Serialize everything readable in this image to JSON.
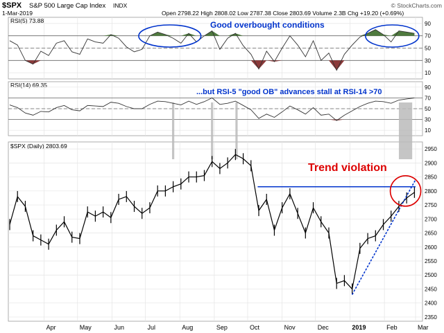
{
  "header": {
    "symbol": "$SPX",
    "name": "S&P 500 Large Cap Index",
    "exchange": "INDX",
    "date": "1-Mar-2019",
    "quote": "Open 2798.22  High 2808.02  Low 2787.38  Close 2803.69  Volume 2.3B  Chg +19.20 (+0.69%)",
    "watermark": "© StockCharts.com"
  },
  "colors": {
    "price": "#000000",
    "rsi_line": "#333333",
    "ob_fill": "#4f7a3e",
    "os_fill": "#8c3a3a",
    "annot_blue": "#0033cc",
    "annot_red": "#dd0000",
    "highlight": "#bbbbbb",
    "grid": "#e4e4e4"
  },
  "chart_data": [
    {
      "type": "line",
      "panel": "rsi5",
      "label": "RSI(5) 73.88",
      "ylim": [
        0,
        100
      ],
      "yticks": [
        10,
        30,
        50,
        70,
        90
      ],
      "ref_levels": [
        30,
        50,
        70
      ],
      "annotation": "Good overbought conditions",
      "series": [
        {
          "x": [
            "2018-03-01",
            "2018-03-08",
            "2018-03-15",
            "2018-03-22",
            "2018-03-29",
            "2018-04-05",
            "2018-04-12",
            "2018-04-19",
            "2018-04-26",
            "2018-05-03",
            "2018-05-10",
            "2018-05-17",
            "2018-05-24",
            "2018-05-31",
            "2018-06-07",
            "2018-06-14",
            "2018-06-21",
            "2018-06-28",
            "2018-07-05",
            "2018-07-12",
            "2018-07-19",
            "2018-07-26",
            "2018-08-02",
            "2018-08-09",
            "2018-08-16",
            "2018-08-23",
            "2018-08-30",
            "2018-09-06",
            "2018-09-13",
            "2018-09-20",
            "2018-09-27",
            "2018-10-04",
            "2018-10-11",
            "2018-10-18",
            "2018-10-25",
            "2018-11-01",
            "2018-11-08",
            "2018-11-15",
            "2018-11-22",
            "2018-11-29",
            "2018-12-06",
            "2018-12-13",
            "2018-12-20",
            "2018-12-27",
            "2019-01-03",
            "2019-01-10",
            "2019-01-17",
            "2019-01-24",
            "2019-01-31",
            "2019-02-07",
            "2019-02-14",
            "2019-02-21",
            "2019-02-28"
          ],
          "values": [
            62,
            55,
            30,
            24,
            45,
            38,
            58,
            62,
            44,
            40,
            65,
            60,
            58,
            72,
            66,
            52,
            44,
            48,
            70,
            76,
            72,
            66,
            58,
            74,
            60,
            70,
            78,
            48,
            66,
            74,
            54,
            40,
            16,
            45,
            28,
            50,
            70,
            55,
            36,
            62,
            30,
            42,
            14,
            40,
            55,
            68,
            74,
            80,
            72,
            60,
            78,
            76,
            74
          ]
        }
      ]
    },
    {
      "type": "line",
      "panel": "rsi14",
      "label": "RSI(14) 69.35",
      "ylim": [
        0,
        100
      ],
      "yticks": [
        10,
        30,
        50,
        70,
        90
      ],
      "ref_levels": [
        30,
        50,
        70
      ],
      "annotation": "...but RSI-5 \"good OB\" advances stall at RSI-14 >70",
      "series": [
        {
          "x": [
            "2018-03-01",
            "2018-03-08",
            "2018-03-15",
            "2018-03-22",
            "2018-03-29",
            "2018-04-05",
            "2018-04-12",
            "2018-04-19",
            "2018-04-26",
            "2018-05-03",
            "2018-05-10",
            "2018-05-17",
            "2018-05-24",
            "2018-05-31",
            "2018-06-07",
            "2018-06-14",
            "2018-06-21",
            "2018-06-28",
            "2018-07-05",
            "2018-07-12",
            "2018-07-19",
            "2018-07-26",
            "2018-08-02",
            "2018-08-09",
            "2018-08-16",
            "2018-08-23",
            "2018-08-30",
            "2018-09-06",
            "2018-09-13",
            "2018-09-20",
            "2018-09-27",
            "2018-10-04",
            "2018-10-11",
            "2018-10-18",
            "2018-10-25",
            "2018-11-01",
            "2018-11-08",
            "2018-11-15",
            "2018-11-22",
            "2018-11-29",
            "2018-12-06",
            "2018-12-13",
            "2018-12-20",
            "2018-12-27",
            "2019-01-03",
            "2019-01-10",
            "2019-01-17",
            "2019-01-24",
            "2019-01-31",
            "2019-02-07",
            "2019-02-14",
            "2019-02-21",
            "2019-02-28"
          ],
          "values": [
            57,
            52,
            42,
            38,
            45,
            44,
            52,
            56,
            48,
            46,
            56,
            55,
            54,
            62,
            60,
            54,
            50,
            50,
            58,
            64,
            63,
            60,
            57,
            64,
            58,
            63,
            70,
            58,
            60,
            64,
            56,
            48,
            32,
            40,
            34,
            44,
            55,
            48,
            40,
            52,
            38,
            40,
            28,
            38,
            46,
            54,
            60,
            64,
            63,
            60,
            66,
            68,
            70
          ]
        }
      ]
    },
    {
      "type": "line",
      "panel": "price",
      "label": "$SPX (Daily) 2803.69",
      "ylim": [
        2335,
        2975
      ],
      "yticks": [
        2350,
        2400,
        2450,
        2500,
        2550,
        2600,
        2650,
        2700,
        2750,
        2800,
        2850,
        2900,
        2950
      ],
      "annotation": "Trend violation",
      "resistance": {
        "x": [
          "2018-10-10",
          "2019-03-01"
        ],
        "y": [
          2815,
          2815
        ]
      },
      "trendline": {
        "x": [
          "2019-01-03",
          "2019-03-01"
        ],
        "y": [
          2430,
          2840
        ]
      },
      "series": [
        {
          "name": "$SPX",
          "x": [
            "2018-03-01",
            "2018-03-08",
            "2018-03-15",
            "2018-03-22",
            "2018-03-29",
            "2018-04-05",
            "2018-04-12",
            "2018-04-19",
            "2018-04-26",
            "2018-05-03",
            "2018-05-10",
            "2018-05-17",
            "2018-05-24",
            "2018-05-31",
            "2018-06-07",
            "2018-06-14",
            "2018-06-21",
            "2018-06-28",
            "2018-07-05",
            "2018-07-12",
            "2018-07-19",
            "2018-07-26",
            "2018-08-02",
            "2018-08-09",
            "2018-08-16",
            "2018-08-23",
            "2018-08-30",
            "2018-09-06",
            "2018-09-13",
            "2018-09-20",
            "2018-09-27",
            "2018-10-04",
            "2018-10-11",
            "2018-10-18",
            "2018-10-25",
            "2018-11-01",
            "2018-11-08",
            "2018-11-15",
            "2018-11-22",
            "2018-11-29",
            "2018-12-06",
            "2018-12-13",
            "2018-12-20",
            "2018-12-27",
            "2019-01-03",
            "2019-01-10",
            "2019-01-17",
            "2019-01-24",
            "2019-01-31",
            "2019-02-07",
            "2019-02-14",
            "2019-02-21",
            "2019-02-28"
          ],
          "values": [
            2680,
            2780,
            2745,
            2640,
            2625,
            2610,
            2660,
            2690,
            2635,
            2630,
            2725,
            2710,
            2725,
            2705,
            2770,
            2780,
            2745,
            2720,
            2740,
            2800,
            2800,
            2815,
            2825,
            2850,
            2850,
            2855,
            2905,
            2880,
            2900,
            2930,
            2915,
            2890,
            2730,
            2770,
            2660,
            2740,
            2790,
            2720,
            2650,
            2740,
            2690,
            2650,
            2470,
            2480,
            2450,
            2595,
            2630,
            2640,
            2680,
            2710,
            2745,
            2775,
            2795
          ]
        }
      ]
    }
  ],
  "x_axis": {
    "ticks": [
      {
        "x": "2018-04-01",
        "label": "Apr"
      },
      {
        "x": "2018-05-01",
        "label": "May"
      },
      {
        "x": "2018-06-01",
        "label": "Jun"
      },
      {
        "x": "2018-07-01",
        "label": "Jul"
      },
      {
        "x": "2018-08-01",
        "label": "Aug"
      },
      {
        "x": "2018-09-01",
        "label": "Sep"
      },
      {
        "x": "2018-10-01",
        "label": "Oct"
      },
      {
        "x": "2018-11-01",
        "label": "Nov"
      },
      {
        "x": "2018-12-01",
        "label": "Dec"
      },
      {
        "x": "2019-01-01",
        "label": "2019"
      },
      {
        "x": "2019-02-01",
        "label": "Feb"
      },
      {
        "x": "2019-03-01",
        "label": "Mar"
      }
    ],
    "xlim": [
      "2018-03-01",
      "2019-03-06"
    ]
  },
  "highlights": [
    {
      "x": [
        "2018-07-25",
        "2018-07-27"
      ]
    },
    {
      "x": [
        "2018-08-29",
        "2018-08-31"
      ]
    },
    {
      "x": [
        "2018-09-20",
        "2018-09-22"
      ]
    },
    {
      "x": [
        "2019-02-14",
        "2019-02-26"
      ]
    }
  ],
  "ellipses": [
    {
      "panel": "rsi5",
      "x": [
        "2018-06-25",
        "2018-08-20"
      ]
    },
    {
      "panel": "rsi5",
      "x": [
        "2019-01-15",
        "2019-03-04"
      ]
    }
  ],
  "circle": {
    "panel": "price",
    "x": "2019-02-20",
    "y": 2800
  }
}
